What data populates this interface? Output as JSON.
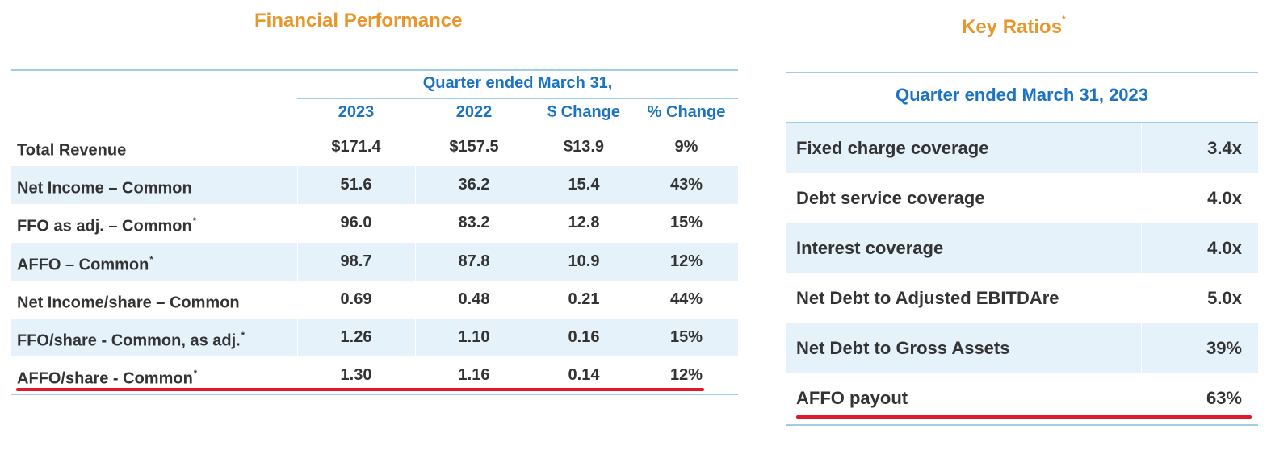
{
  "financial": {
    "title": "Financial Performance",
    "period": "Quarter ended March 31,",
    "columns": [
      "2023",
      "2022",
      "$ Change",
      "% Change"
    ],
    "rows": [
      {
        "label": "Total Revenue",
        "footnote": "",
        "values": [
          "$171.4",
          "$157.5",
          "$13.9",
          "9%"
        ]
      },
      {
        "label": "Net Income – Common",
        "footnote": "",
        "values": [
          "51.6",
          "36.2",
          "15.4",
          "43%"
        ]
      },
      {
        "label": "FFO as adj. – Common",
        "footnote": "*",
        "values": [
          "96.0",
          "83.2",
          "12.8",
          "15%"
        ]
      },
      {
        "label": "AFFO – Common",
        "footnote": "*",
        "values": [
          "98.7",
          "87.8",
          "10.9",
          "12%"
        ]
      },
      {
        "label": "Net Income/share – Common",
        "footnote": "",
        "values": [
          "0.69",
          "0.48",
          "0.21",
          "44%"
        ]
      },
      {
        "label": "FFO/share - Common, as adj.",
        "footnote": "*",
        "values": [
          "1.26",
          "1.10",
          "0.16",
          "15%"
        ]
      },
      {
        "label": "AFFO/share - Common",
        "footnote": "*",
        "values": [
          "1.30",
          "1.16",
          "0.14",
          "12%"
        ]
      }
    ]
  },
  "ratios": {
    "title": "Key Ratios",
    "title_footnote": "*",
    "period": "Quarter ended March 31, 2023",
    "rows": [
      {
        "label": "Fixed charge coverage",
        "value": "3.4x"
      },
      {
        "label": "Debt service coverage",
        "value": "4.0x"
      },
      {
        "label": "Interest coverage",
        "value": "4.0x"
      },
      {
        "label": "Net Debt to Adjusted EBITDAre",
        "value": "5.0x"
      },
      {
        "label": "Net Debt to Gross Assets",
        "value": "39%"
      },
      {
        "label": "AFFO payout",
        "value": "63%"
      }
    ]
  },
  "colors": {
    "title": "#e8962a",
    "header": "#1a73c4",
    "stripe": "#e5f2fa",
    "rule": "#9fcde6",
    "highlight": "#e0192a"
  }
}
